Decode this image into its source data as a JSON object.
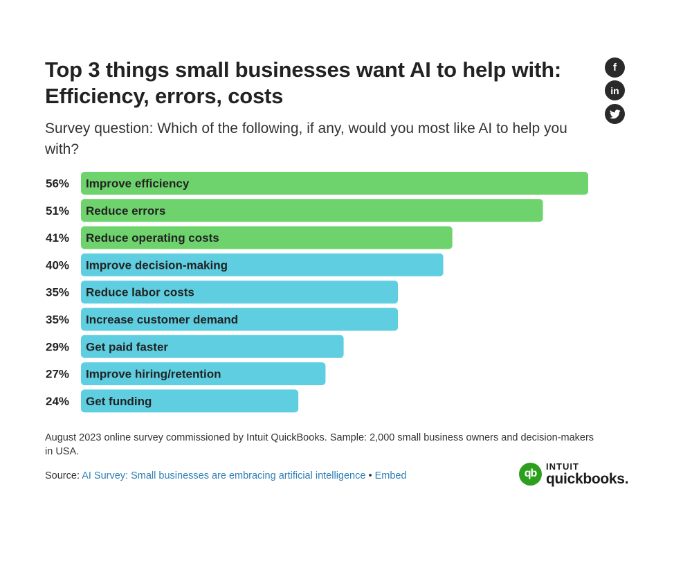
{
  "title": "Top 3 things small businesses want AI to help with: Efficiency, errors, costs",
  "subtitle": "Survey question: Which of the following, if any, would you most like AI to help you with?",
  "share": {
    "facebook_glyph": "f",
    "linkedin_glyph": "in",
    "icons": [
      "facebook-icon",
      "linkedin-icon",
      "twitter-icon"
    ]
  },
  "chart_data": {
    "type": "bar",
    "orientation": "horizontal",
    "categories": [
      "Improve efficiency",
      "Reduce errors",
      "Reduce operating costs",
      "Improve decision-making",
      "Reduce labor costs",
      "Increase customer demand",
      "Get paid faster",
      "Improve hiring/retention",
      "Get funding"
    ],
    "values": [
      56,
      51,
      41,
      40,
      35,
      35,
      29,
      27,
      24
    ],
    "value_labels": [
      "56%",
      "51%",
      "41%",
      "40%",
      "35%",
      "35%",
      "29%",
      "27%",
      "24%"
    ],
    "highlight": [
      true,
      true,
      true,
      false,
      false,
      false,
      false,
      false,
      false
    ],
    "colors": {
      "highlight": "#6ed36d",
      "default": "#5ecee0"
    },
    "xlim": [
      0,
      60
    ],
    "title": "",
    "xlabel": "",
    "ylabel": ""
  },
  "footnote": "August 2023 online survey commissioned by Intuit QuickBooks. Sample: 2,000 small business owners and decision-makers in USA.",
  "source": {
    "prefix": "Source: ",
    "link_text": "AI Survey: Small businesses are embracing artificial intelligence",
    "separator": " • ",
    "embed_text": "Embed"
  },
  "logo": {
    "badge": "qb",
    "top": "INTUIT",
    "bottom": "quickbooks",
    "bottom_suffix": "."
  }
}
